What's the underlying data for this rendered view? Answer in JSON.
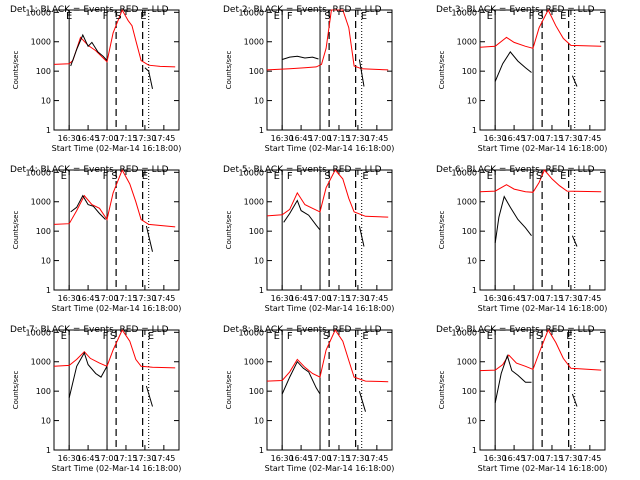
{
  "colors": {
    "events": "#000000",
    "lld": "#ff0000",
    "axis": "#000000",
    "background": "#ffffff"
  },
  "chart_data": [
    {
      "type": "line",
      "title": "Det 1: BLACK = Events, RED = LLD",
      "xlabel": "Start Time (02-Mar-14 16:18:00)",
      "ylabel": "Counts/sec",
      "yscale": "log",
      "ylim": [
        1,
        12000
      ],
      "xlim": [
        16.3,
        17.95
      ],
      "xticks": [
        "16:30",
        "16:45",
        "17:00",
        "17:15",
        "17:30",
        "17:45"
      ],
      "yticks": [
        "1",
        "10",
        "100",
        "1000",
        "10000"
      ],
      "markers": [
        {
          "label": "E",
          "x": 16.5
        },
        {
          "label": "F",
          "x": 16.98
        },
        {
          "label": "S",
          "x": 17.15
        },
        {
          "label": "E",
          "x": 17.48
        }
      ],
      "solid_lines": [
        16.5,
        17.0
      ],
      "dashed_lines": [
        17.12,
        17.47
      ],
      "dotted_lines": [
        17.55
      ],
      "series": [
        {
          "name": "Events",
          "color": "#000000",
          "x": [
            16.52,
            16.6,
            16.68,
            16.75,
            16.8,
            16.88,
            16.95,
            17.0,
            17.47,
            17.5,
            17.55,
            17.6
          ],
          "y": [
            150,
            550,
            1700,
            700,
            950,
            450,
            320,
            230,
            null,
            130,
            100,
            25
          ]
        },
        {
          "name": "LLD",
          "color": "#ff0000",
          "x": [
            16.3,
            16.5,
            16.55,
            16.65,
            16.75,
            16.85,
            16.95,
            17.0,
            17.08,
            17.2,
            17.28,
            17.33,
            17.38,
            17.45,
            17.55,
            17.7,
            17.9
          ],
          "y": [
            170,
            180,
            230,
            1400,
            750,
            500,
            280,
            210,
            2000,
            12000,
            5200,
            3500,
            1100,
            230,
            160,
            145,
            140
          ]
        }
      ]
    },
    {
      "type": "line",
      "title": "Det 2: BLACK = Events, RED = LLD",
      "xlabel": "Start Time (02-Mar-14 16:18:00)",
      "ylabel": "Counts/sec",
      "yscale": "log",
      "ylim": [
        1,
        12000
      ],
      "xlim": [
        16.3,
        17.95
      ],
      "xticks": [
        "16:30",
        "16:45",
        "17:00",
        "17:15",
        "17:30",
        "17:45"
      ],
      "yticks": [
        "1",
        "10",
        "100",
        "1000",
        "10000"
      ],
      "markers": [
        {
          "label": "E",
          "x": 16.43
        },
        {
          "label": "F",
          "x": 16.6
        },
        {
          "label": "S",
          "x": 17.1
        },
        {
          "label": "E",
          "x": 17.58
        }
      ],
      "solid_lines": [
        16.5,
        17.0
      ],
      "dashed_lines": [
        17.12,
        17.47
      ],
      "dotted_lines": [
        17.55
      ],
      "series": [
        {
          "name": "Events",
          "color": "#000000",
          "x": [
            16.5,
            16.6,
            16.7,
            16.8,
            16.9,
            16.98,
            17.47,
            17.52,
            17.58
          ],
          "y": [
            250,
            300,
            320,
            280,
            300,
            260,
            null,
            250,
            30
          ]
        },
        {
          "name": "LLD",
          "color": "#ff0000",
          "x": [
            16.3,
            16.6,
            16.8,
            16.95,
            17.02,
            17.08,
            17.15,
            17.3,
            17.38,
            17.45,
            17.55,
            17.9
          ],
          "y": [
            110,
            120,
            130,
            140,
            170,
            600,
            12000,
            12000,
            3000,
            150,
            120,
            110
          ]
        }
      ]
    },
    {
      "type": "line",
      "title": "Det 3: BLACK = Events, RED = LLD",
      "xlabel": "Start Time (02-Mar-14 16:18:00)",
      "ylabel": "Counts/sec",
      "yscale": "log",
      "ylim": [
        1,
        12000
      ],
      "xlim": [
        16.3,
        17.95
      ],
      "xticks": [
        "16:30",
        "16:45",
        "17:00",
        "17:15",
        "17:30",
        "17:45"
      ],
      "yticks": [
        "1",
        "10",
        "100",
        "1000",
        "10000"
      ],
      "markers": [
        {
          "label": "E",
          "x": 16.43
        },
        {
          "label": "F",
          "x": 16.98
        },
        {
          "label": "S",
          "x": 17.1
        },
        {
          "label": "E",
          "x": 17.4
        }
      ],
      "solid_lines": [
        16.5,
        17.0
      ],
      "dashed_lines": [
        17.12,
        17.47
      ],
      "dotted_lines": [
        17.55
      ],
      "series": [
        {
          "name": "Events",
          "color": "#000000",
          "x": [
            16.5,
            16.6,
            16.7,
            16.8,
            16.9,
            16.98,
            17.47,
            17.52,
            17.58
          ],
          "y": [
            45,
            180,
            450,
            220,
            130,
            90,
            null,
            70,
            30
          ]
        },
        {
          "name": "LLD",
          "color": "#ff0000",
          "x": [
            16.3,
            16.5,
            16.65,
            16.75,
            16.9,
            17.0,
            17.08,
            17.2,
            17.3,
            17.4,
            17.5,
            17.9
          ],
          "y": [
            650,
            700,
            1400,
            950,
            700,
            600,
            3000,
            12000,
            3500,
            1300,
            750,
            700
          ]
        }
      ]
    },
    {
      "type": "line",
      "title": "Det 4: BLACK = Events, RED = LLD",
      "xlabel": "Start Time (02-Mar-14 16:18:00)",
      "ylabel": "Counts/sec",
      "yscale": "log",
      "ylim": [
        1,
        12000
      ],
      "xlim": [
        16.3,
        17.95
      ],
      "xticks": [
        "16:30",
        "16:45",
        "17:00",
        "17:15",
        "17:30",
        "17:45"
      ],
      "yticks": [
        "1",
        "10",
        "100",
        "1000",
        "10000"
      ],
      "markers": [
        {
          "label": "E",
          "x": 16.43
        },
        {
          "label": "F",
          "x": 16.98
        },
        {
          "label": "S",
          "x": 17.1
        },
        {
          "label": "E",
          "x": 17.5
        }
      ],
      "solid_lines": [
        16.5,
        17.0
      ],
      "dashed_lines": [
        17.12,
        17.47
      ],
      "dotted_lines": [
        17.55
      ],
      "series": [
        {
          "name": "Events",
          "color": "#000000",
          "x": [
            16.52,
            16.6,
            16.68,
            16.75,
            16.82,
            16.9,
            16.98,
            17.47,
            17.52,
            17.6
          ],
          "y": [
            450,
            650,
            1600,
            800,
            700,
            400,
            250,
            null,
            150,
            20
          ]
        },
        {
          "name": "LLD",
          "color": "#ff0000",
          "x": [
            16.3,
            16.5,
            16.6,
            16.7,
            16.8,
            16.9,
            17.0,
            17.08,
            17.2,
            17.3,
            17.38,
            17.45,
            17.55,
            17.9
          ],
          "y": [
            170,
            180,
            500,
            1600,
            800,
            600,
            250,
            2000,
            12000,
            4000,
            1000,
            250,
            170,
            140
          ]
        }
      ]
    },
    {
      "type": "line",
      "title": "Det 5: BLACK = Events, RED = LLD",
      "xlabel": "Start Time (02-Mar-14 16:18:00)",
      "ylabel": "Counts/sec",
      "yscale": "log",
      "ylim": [
        1,
        12000
      ],
      "xlim": [
        16.3,
        17.95
      ],
      "xticks": [
        "16:30",
        "16:45",
        "17:00",
        "17:15",
        "17:30",
        "17:45"
      ],
      "yticks": [
        "1",
        "10",
        "100",
        "1000",
        "10000"
      ],
      "markers": [
        {
          "label": "E",
          "x": 16.43
        },
        {
          "label": "F",
          "x": 16.6
        },
        {
          "label": "S",
          "x": 17.1
        },
        {
          "label": "E",
          "x": 17.6
        }
      ],
      "solid_lines": [
        16.5,
        17.0
      ],
      "dashed_lines": [
        17.12,
        17.47
      ],
      "dotted_lines": [
        17.55
      ],
      "series": [
        {
          "name": "Events",
          "color": "#000000",
          "x": [
            16.52,
            16.6,
            16.7,
            16.75,
            16.85,
            16.95,
            17.0,
            17.47,
            17.52,
            17.58
          ],
          "y": [
            200,
            400,
            1100,
            500,
            350,
            160,
            110,
            null,
            150,
            30
          ]
        },
        {
          "name": "LLD",
          "color": "#ff0000",
          "x": [
            16.3,
            16.5,
            16.6,
            16.7,
            16.8,
            16.9,
            17.0,
            17.08,
            17.2,
            17.3,
            17.38,
            17.45,
            17.6,
            17.9
          ],
          "y": [
            330,
            360,
            550,
            2000,
            800,
            600,
            450,
            3000,
            12000,
            6000,
            1300,
            450,
            320,
            300
          ]
        }
      ]
    },
    {
      "type": "line",
      "title": "Det 6: BLACK = Events, RED = LLD",
      "xlabel": "Start Time (02-Mar-14 16:18:00)",
      "ylabel": "Counts/sec",
      "yscale": "log",
      "ylim": [
        1,
        12000
      ],
      "xlim": [
        16.3,
        17.95
      ],
      "xticks": [
        "16:30",
        "16:45",
        "17:00",
        "17:15",
        "17:30",
        "17:45"
      ],
      "yticks": [
        "1",
        "10",
        "100",
        "1000",
        "10000"
      ],
      "markers": [
        {
          "label": "E",
          "x": 16.43
        },
        {
          "label": "F",
          "x": 16.98
        },
        {
          "label": "S",
          "x": 17.08
        },
        {
          "label": "E",
          "x": 17.4
        }
      ],
      "solid_lines": [
        16.5,
        17.0
      ],
      "dashed_lines": [
        17.12,
        17.47
      ],
      "dotted_lines": [
        17.55
      ],
      "series": [
        {
          "name": "Events",
          "color": "#000000",
          "x": [
            16.5,
            16.55,
            16.62,
            16.7,
            16.8,
            16.9,
            16.98,
            17.47,
            17.52,
            17.58
          ],
          "y": [
            40,
            300,
            1500,
            650,
            250,
            130,
            70,
            null,
            70,
            30
          ]
        },
        {
          "name": "LLD",
          "color": "#ff0000",
          "x": [
            16.3,
            16.5,
            16.65,
            16.75,
            16.9,
            17.0,
            17.08,
            17.15,
            17.25,
            17.35,
            17.45,
            17.9
          ],
          "y": [
            2200,
            2300,
            3800,
            2700,
            2200,
            2100,
            4500,
            12000,
            6000,
            3500,
            2300,
            2200
          ]
        }
      ]
    },
    {
      "type": "line",
      "title": "Det 7: BLACK = Events, RED = LLD",
      "xlabel": "Start Time (02-Mar-14 16:18:00)",
      "ylabel": "Counts/sec",
      "yscale": "log",
      "ylim": [
        1,
        12000
      ],
      "xlim": [
        16.3,
        17.95
      ],
      "xticks": [
        "16:30",
        "16:45",
        "17:00",
        "17:15",
        "17:30",
        "17:45"
      ],
      "yticks": [
        "1",
        "10",
        "100",
        "1000",
        "10000"
      ],
      "markers": [
        {
          "label": "E",
          "x": 16.43
        },
        {
          "label": "F",
          "x": 16.98
        },
        {
          "label": "S",
          "x": 17.08
        },
        {
          "label": "E",
          "x": 17.58
        }
      ],
      "solid_lines": [
        16.5,
        17.0
      ],
      "dashed_lines": [
        17.12,
        17.47
      ],
      "dotted_lines": [
        17.55
      ],
      "series": [
        {
          "name": "Events",
          "color": "#000000",
          "x": [
            16.5,
            16.6,
            16.7,
            16.75,
            16.85,
            16.92,
            17.0,
            17.47,
            17.52,
            17.6
          ],
          "y": [
            60,
            700,
            2000,
            800,
            400,
            300,
            700,
            null,
            150,
            30
          ]
        },
        {
          "name": "LLD",
          "color": "#ff0000",
          "x": [
            16.3,
            16.5,
            16.6,
            16.7,
            16.78,
            16.9,
            17.0,
            17.08,
            17.2,
            17.3,
            17.38,
            17.45,
            17.6,
            17.9
          ],
          "y": [
            700,
            750,
            1200,
            2200,
            1300,
            900,
            700,
            2500,
            12000,
            5000,
            1200,
            700,
            650,
            620
          ]
        }
      ]
    },
    {
      "type": "line",
      "title": "Det 8: BLACK = Events, RED = LLD",
      "xlabel": "Start Time (02-Mar-14 16:18:00)",
      "ylabel": "Counts/sec",
      "yscale": "log",
      "ylim": [
        1,
        12000
      ],
      "xlim": [
        16.3,
        17.95
      ],
      "xticks": [
        "16:30",
        "16:45",
        "17:00",
        "17:15",
        "17:30",
        "17:45"
      ],
      "yticks": [
        "1",
        "10",
        "100",
        "1000",
        "10000"
      ],
      "markers": [
        {
          "label": "E",
          "x": 16.43
        },
        {
          "label": "F",
          "x": 16.6
        },
        {
          "label": "S",
          "x": 17.08
        },
        {
          "label": "E",
          "x": 17.6
        }
      ],
      "solid_lines": [
        16.5,
        17.0
      ],
      "dashed_lines": [
        17.12,
        17.47
      ],
      "dotted_lines": [
        17.55
      ],
      "series": [
        {
          "name": "Events",
          "color": "#000000",
          "x": [
            16.5,
            16.6,
            16.7,
            16.78,
            16.85,
            16.95,
            17.0,
            17.47,
            17.52,
            17.6
          ],
          "y": [
            80,
            300,
            1000,
            600,
            450,
            130,
            80,
            null,
            100,
            20
          ]
        },
        {
          "name": "LLD",
          "color": "#ff0000",
          "x": [
            16.3,
            16.5,
            16.6,
            16.7,
            16.8,
            16.9,
            17.0,
            17.08,
            17.2,
            17.3,
            17.38,
            17.45,
            17.6,
            17.9
          ],
          "y": [
            220,
            230,
            450,
            1200,
            650,
            400,
            300,
            2500,
            12000,
            5000,
            1100,
            300,
            220,
            210
          ]
        }
      ]
    },
    {
      "type": "line",
      "title": "Det 9: BLACK = Events, RED = LLD",
      "xlabel": "Start Time (02-Mar-14 16:18:00)",
      "ylabel": "Counts/sec",
      "yscale": "log",
      "ylim": [
        1,
        12000
      ],
      "xlim": [
        16.3,
        17.95
      ],
      "xticks": [
        "16:30",
        "16:45",
        "17:00",
        "17:15",
        "17:30",
        "17:45"
      ],
      "yticks": [
        "1",
        "10",
        "100",
        "1000",
        "10000"
      ],
      "markers": [
        {
          "label": "E",
          "x": 16.43
        },
        {
          "label": "F",
          "x": 16.98
        },
        {
          "label": "S",
          "x": 17.08
        },
        {
          "label": "E",
          "x": 17.48
        }
      ],
      "solid_lines": [
        16.5,
        17.0
      ],
      "dashed_lines": [
        17.12,
        17.47
      ],
      "dotted_lines": [
        17.55
      ],
      "series": [
        {
          "name": "Events",
          "color": "#000000",
          "x": [
            16.5,
            16.58,
            16.66,
            16.72,
            16.8,
            16.9,
            16.98,
            17.47,
            17.52,
            17.58
          ],
          "y": [
            40,
            400,
            1600,
            500,
            350,
            200,
            200,
            null,
            80,
            30
          ]
        },
        {
          "name": "LLD",
          "color": "#ff0000",
          "x": [
            16.3,
            16.5,
            16.6,
            16.68,
            16.78,
            16.9,
            17.0,
            17.08,
            17.2,
            17.3,
            17.4,
            17.5,
            17.9
          ],
          "y": [
            500,
            520,
            800,
            1700,
            900,
            700,
            550,
            2000,
            12000,
            4500,
            1300,
            600,
            520
          ]
        }
      ]
    }
  ]
}
